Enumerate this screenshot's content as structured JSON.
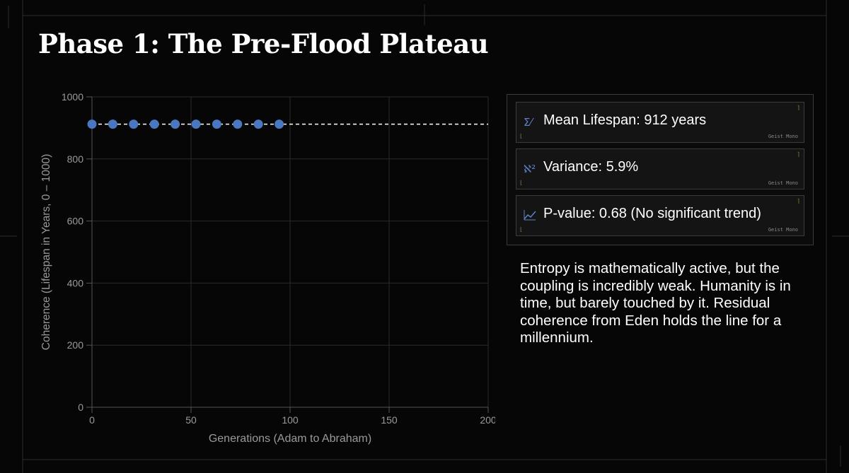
{
  "slide": {
    "title": "Phase 1: The Pre-Flood Plateau",
    "narrative": "Entropy is mathematically active, but the coupling is incredibly weak. Humanity is in time, but barely touched by it. Residual coherence from Eden holds the line for a millennium."
  },
  "stats": [
    {
      "icon": "sigma-icon",
      "glyph": "Σ⁄",
      "label": "Mean Lifespan: 912 years",
      "font_tag": "Geist Mono"
    },
    {
      "icon": "variance-icon",
      "glyph": "ℵ²",
      "label": "Variance: 5.9%",
      "font_tag": "Geist Mono"
    },
    {
      "icon": "trend-chart-icon",
      "glyph": "⩘",
      "label": "P-value: 0.68 (No significant trend)",
      "font_tag": "Geist Mono"
    }
  ],
  "chart_data": {
    "type": "scatter",
    "xlabel": "Generations (Adam to Abraham)",
    "ylabel": "Coherence (Lifespan in Years, 0 – 1000)",
    "xlim": [
      0,
      200
    ],
    "ylim": [
      0,
      1000
    ],
    "x_ticks": [
      0,
      50,
      100,
      150,
      200
    ],
    "y_ticks": [
      0,
      200,
      400,
      600,
      800,
      1000
    ],
    "grid": true,
    "series": [
      {
        "x": [
          0,
          10.5,
          21,
          31.5,
          42,
          52.5,
          63,
          73.5,
          84,
          94.5
        ],
        "y": [
          912,
          912,
          912,
          912,
          912,
          912,
          912,
          912,
          912,
          912
        ],
        "color": "#4a78c0"
      }
    ],
    "reference_line": {
      "y": 912,
      "style": "dashed",
      "color": "#ffffff"
    }
  }
}
